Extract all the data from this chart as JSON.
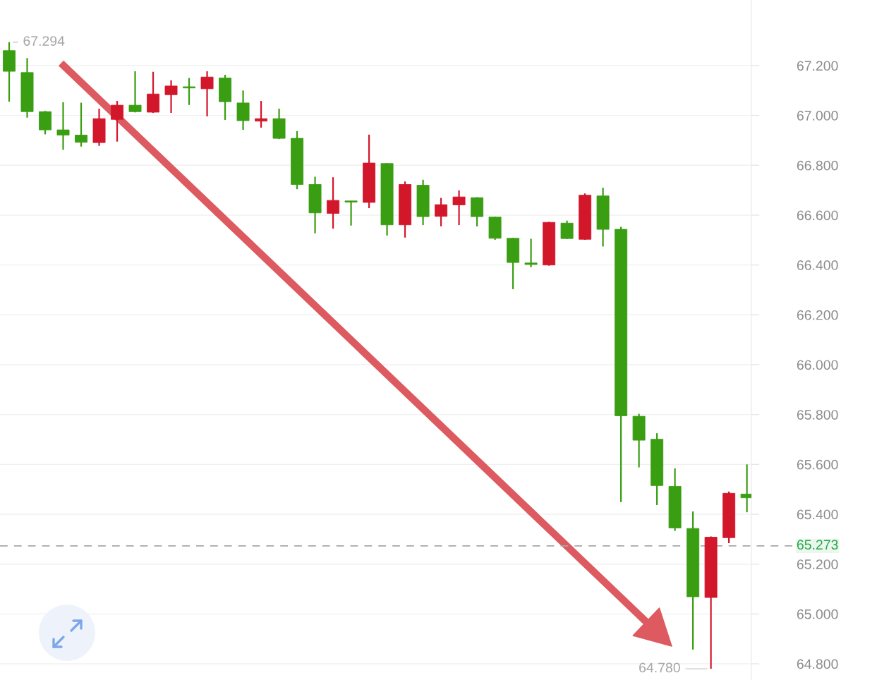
{
  "chart_data": {
    "type": "candlestick",
    "categories": [
      null,
      null,
      null,
      null,
      null,
      null,
      null,
      null,
      null,
      null,
      null,
      null,
      null,
      null,
      null,
      null,
      null,
      null,
      null,
      null,
      null,
      null,
      null,
      null,
      null,
      null,
      null,
      null,
      null,
      null,
      null,
      null,
      null,
      null,
      null,
      null,
      null,
      null,
      null,
      null,
      null,
      null
    ],
    "ohlc": [
      [
        67.26,
        67.294,
        67.055,
        67.177
      ],
      [
        67.172,
        67.23,
        66.991,
        67.015
      ],
      [
        67.015,
        67.018,
        66.924,
        66.942
      ],
      [
        66.942,
        67.053,
        66.862,
        66.921
      ],
      [
        66.921,
        67.051,
        66.875,
        66.892
      ],
      [
        66.891,
        67.027,
        66.878,
        66.987
      ],
      [
        66.984,
        67.058,
        66.895,
        67.041
      ],
      [
        67.041,
        67.177,
        67.012,
        67.015
      ],
      [
        67.013,
        67.175,
        67.01,
        67.086
      ],
      [
        67.083,
        67.141,
        67.01,
        67.118
      ],
      [
        67.115,
        67.15,
        67.042,
        67.11
      ],
      [
        67.107,
        67.177,
        66.996,
        67.154
      ],
      [
        67.15,
        67.163,
        66.982,
        67.055
      ],
      [
        67.05,
        67.1,
        66.942,
        66.979
      ],
      [
        66.977,
        67.058,
        66.951,
        66.987
      ],
      [
        66.987,
        67.027,
        66.905,
        66.908
      ],
      [
        66.908,
        66.937,
        66.704,
        66.723
      ],
      [
        66.723,
        66.754,
        66.527,
        66.609
      ],
      [
        66.607,
        66.752,
        66.546,
        66.659
      ],
      [
        66.657,
        66.657,
        66.558,
        66.652
      ],
      [
        66.651,
        66.923,
        66.628,
        66.809
      ],
      [
        66.807,
        66.809,
        66.518,
        66.561
      ],
      [
        66.561,
        66.735,
        66.51,
        66.723
      ],
      [
        66.72,
        66.742,
        66.56,
        66.594
      ],
      [
        66.595,
        66.669,
        66.555,
        66.642
      ],
      [
        66.641,
        66.699,
        66.56,
        66.673
      ],
      [
        66.67,
        66.672,
        66.555,
        66.594
      ],
      [
        66.592,
        66.594,
        66.501,
        66.507
      ],
      [
        66.507,
        66.509,
        66.303,
        66.41
      ],
      [
        66.408,
        66.505,
        66.391,
        66.402
      ],
      [
        66.4,
        66.573,
        66.397,
        66.571
      ],
      [
        66.568,
        66.578,
        66.504,
        66.506
      ],
      [
        66.503,
        66.687,
        66.501,
        66.68
      ],
      [
        66.677,
        66.71,
        66.474,
        66.543
      ],
      [
        66.543,
        66.553,
        65.449,
        65.795
      ],
      [
        65.793,
        65.803,
        65.588,
        65.697
      ],
      [
        65.701,
        65.725,
        65.437,
        65.515
      ],
      [
        65.512,
        65.584,
        65.333,
        65.345
      ],
      [
        65.343,
        65.411,
        64.857,
        65.069
      ],
      [
        65.066,
        65.311,
        64.78,
        65.308
      ],
      [
        65.306,
        65.491,
        65.284,
        65.484
      ],
      [
        65.481,
        65.6,
        65.408,
        65.466
      ]
    ],
    "colors": [
      "#3a9e12",
      "#3a9e12",
      "#3a9e12",
      "#3a9e12",
      "#3a9e12",
      "#d3172b",
      "#d3172b",
      "#3a9e12",
      "#d3172b",
      "#d3172b",
      "#3a9e12",
      "#d3172b",
      "#3a9e12",
      "#3a9e12",
      "#d3172b",
      "#3a9e12",
      "#3a9e12",
      "#3a9e12",
      "#d3172b",
      "#3a9e12",
      "#d3172b",
      "#3a9e12",
      "#d3172b",
      "#3a9e12",
      "#d3172b",
      "#d3172b",
      "#3a9e12",
      "#3a9e12",
      "#3a9e12",
      "#3a9e12",
      "#d3172b",
      "#3a9e12",
      "#d3172b",
      "#3a9e12",
      "#3a9e12",
      "#3a9e12",
      "#3a9e12",
      "#3a9e12",
      "#3a9e12",
      "#d3172b",
      "#d3172b",
      "#3a9e12"
    ],
    "ylim": [
      64.735,
      67.463
    ],
    "yticks": [
      {
        "value": 64.8,
        "label": "64.800"
      },
      {
        "value": 65.0,
        "label": "65.000"
      },
      {
        "value": 65.2,
        "label": "65.200"
      },
      {
        "value": 65.4,
        "label": "65.400"
      },
      {
        "value": 65.6,
        "label": "65.600"
      },
      {
        "value": 65.8,
        "label": "65.800"
      },
      {
        "value": 66.0,
        "label": "66.000"
      },
      {
        "value": 66.2,
        "label": "66.200"
      },
      {
        "value": 66.4,
        "label": "66.400"
      },
      {
        "value": 66.6,
        "label": "66.600"
      },
      {
        "value": 66.8,
        "label": "66.800"
      },
      {
        "value": 67.0,
        "label": "67.000"
      },
      {
        "value": 67.2,
        "label": "67.200"
      }
    ],
    "tick_labels": "y",
    "grid": "y",
    "ref_lines": [
      {
        "axis": "y",
        "value": 65.273,
        "label": "65.273",
        "color": "#a8a8a8",
        "line_style": "dashed"
      }
    ],
    "annotations": [
      "67.294",
      "64.780"
    ]
  }
}
